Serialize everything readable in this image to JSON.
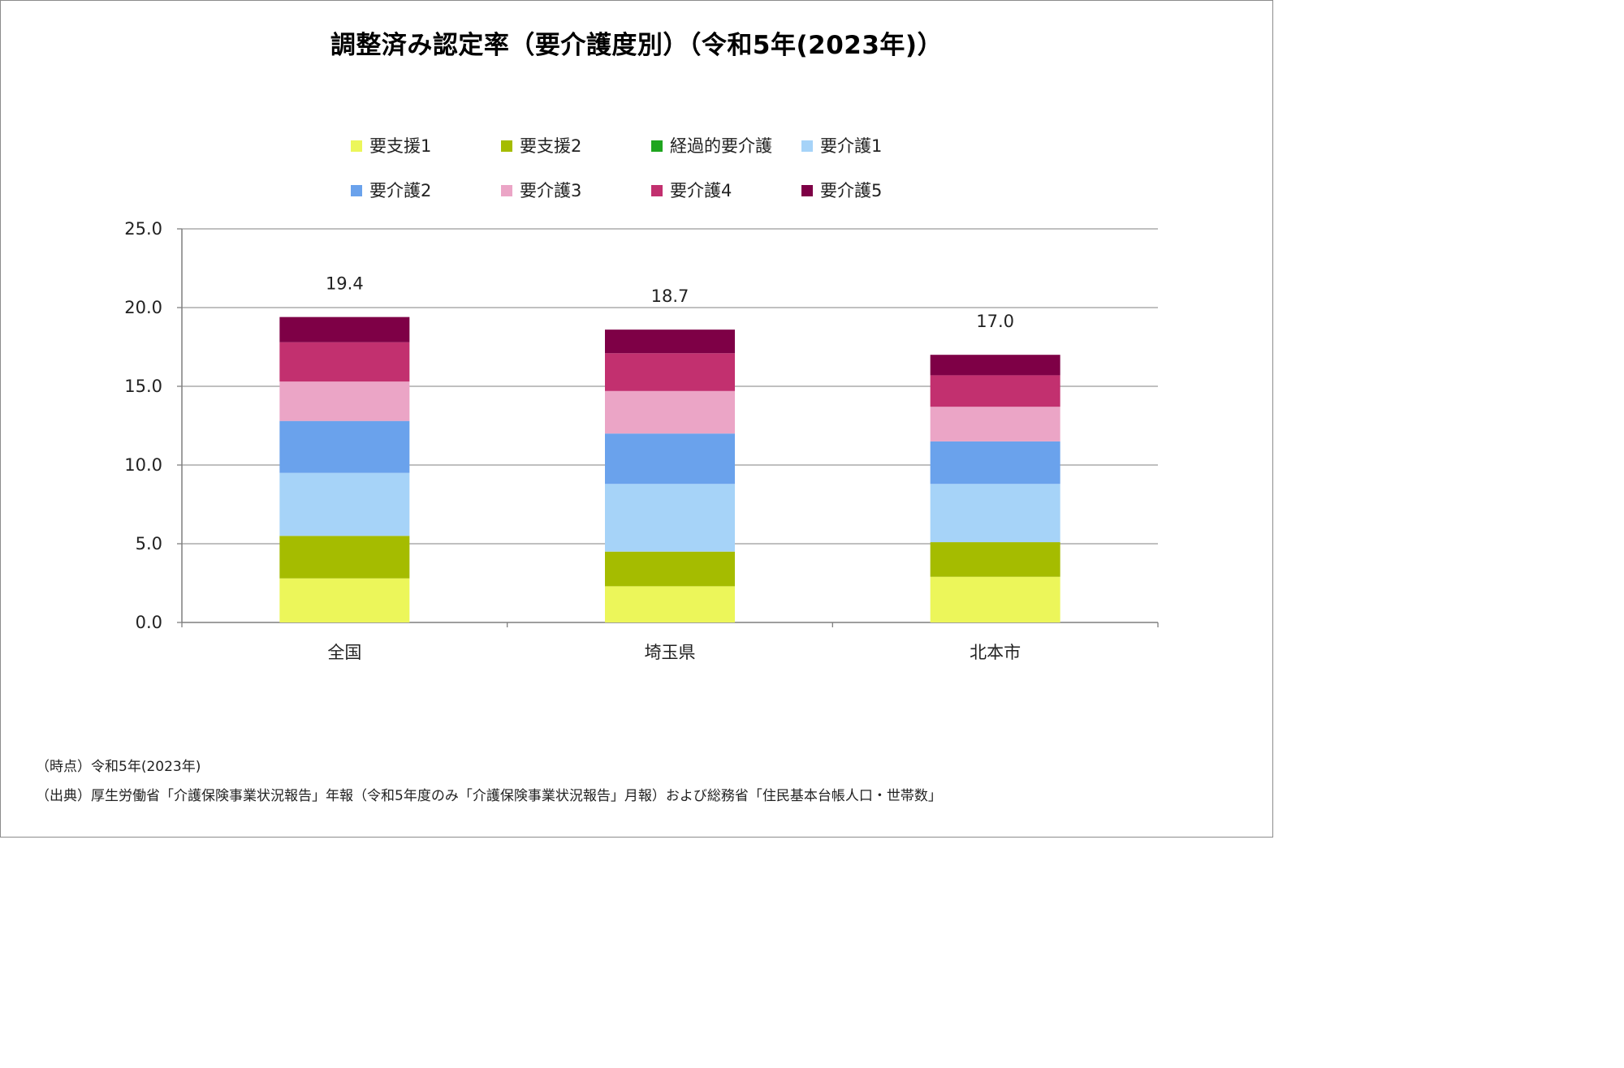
{
  "chart_data": {
    "type": "bar",
    "stacked": true,
    "title": "調整済み認定率（要介護度別）（令和5年(2023年)）",
    "categories": [
      "全国",
      "埼玉県",
      "北本市"
    ],
    "series": [
      {
        "name": "要支援1",
        "color": "#ecf65a",
        "values": [
          2.8,
          2.3,
          2.9
        ]
      },
      {
        "name": "要支援2",
        "color": "#a5bc00",
        "values": [
          2.7,
          2.2,
          2.2
        ]
      },
      {
        "name": "経過的要介護",
        "color": "#1fa51f",
        "values": [
          0.0,
          0.0,
          0.0
        ]
      },
      {
        "name": "要介護1",
        "color": "#a6d3f8",
        "values": [
          4.0,
          4.3,
          3.7
        ]
      },
      {
        "name": "要介護2",
        "color": "#6aa2ec",
        "values": [
          3.3,
          3.2,
          2.7
        ]
      },
      {
        "name": "要介護3",
        "color": "#eba5c6",
        "values": [
          2.5,
          2.7,
          2.2
        ]
      },
      {
        "name": "要介護4",
        "color": "#c2306f",
        "values": [
          2.5,
          2.4,
          2.0
        ]
      },
      {
        "name": "要介護5",
        "color": "#7e0046",
        "values": [
          1.6,
          1.5,
          1.3
        ]
      }
    ],
    "totals": [
      "19.4",
      "18.7",
      "17.0"
    ],
    "ylim": [
      0,
      25
    ],
    "yticks": [
      "0.0",
      "5.0",
      "10.0",
      "15.0",
      "20.0",
      "25.0"
    ],
    "ytick_values": [
      0,
      5,
      10,
      15,
      20,
      25
    ],
    "grid": true,
    "legend_position": "top",
    "xlabel": "",
    "ylabel": ""
  },
  "notes": {
    "time": "（時点）令和5年(2023年)",
    "source": "（出典）厚生労働省「介護保険事業状況報告」年報（令和5年度のみ「介護保険事業状況報告」月報）および総務省「住民基本台帳人口・世帯数」"
  }
}
